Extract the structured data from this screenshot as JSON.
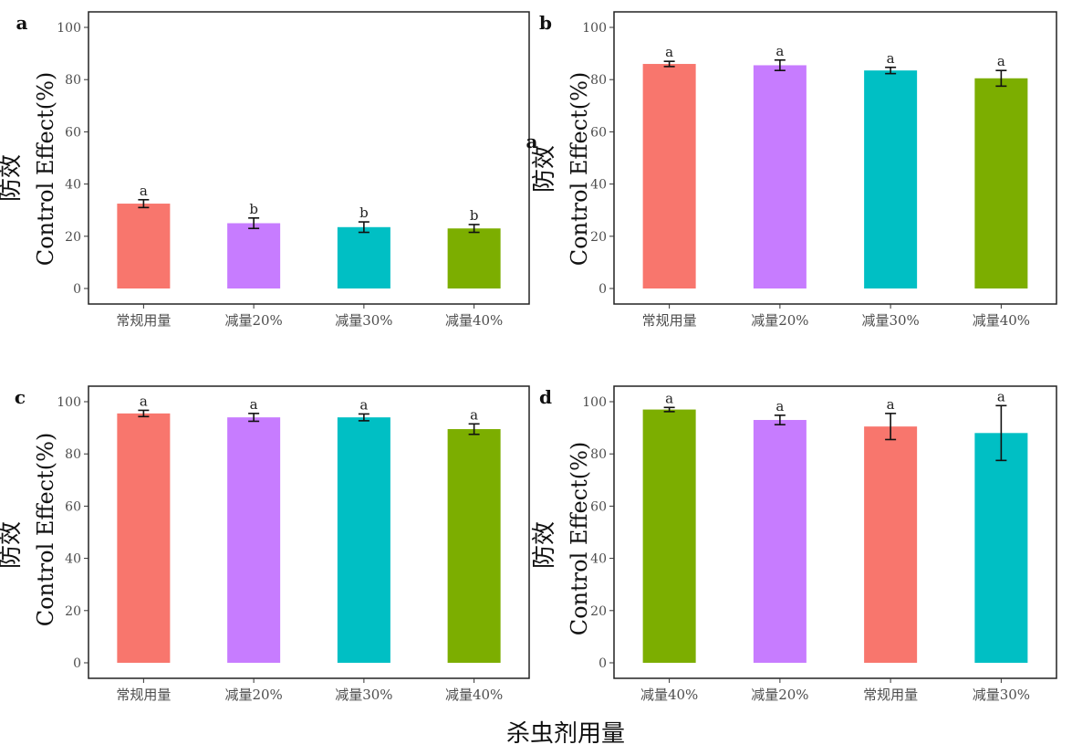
{
  "colors": {
    "常规用量": "#F8766D",
    "减量20%": "#C77CFF",
    "减量30%": "#00BFC4",
    "减量40%": "#7CAE00"
  },
  "chart_data": [
    {
      "type": "bar",
      "panel": "a",
      "ylabel_cn": "防效",
      "ylabel": "Control Effect(%)",
      "ylim": [
        0,
        100
      ],
      "yticks": [
        0,
        20,
        40,
        60,
        80,
        100
      ],
      "categories": [
        "常规用量",
        "减量20%",
        "减量30%",
        "减量40%"
      ],
      "values": [
        32.5,
        25,
        23.5,
        23
      ],
      "errors": [
        1.5,
        2,
        2,
        1.5
      ],
      "significance": [
        "a",
        "b",
        "b",
        "b"
      ]
    },
    {
      "type": "bar",
      "panel": "b",
      "ylabel_cn": "防效",
      "ylabel": "Control Effect(%)",
      "ylim": [
        0,
        100
      ],
      "yticks": [
        0,
        20,
        40,
        60,
        80,
        100
      ],
      "categories": [
        "常规用量",
        "减量20%",
        "减量30%",
        "减量40%"
      ],
      "values": [
        86,
        85.5,
        83.5,
        80.5
      ],
      "errors": [
        1,
        2,
        1.2,
        3
      ],
      "significance": [
        "a",
        "a",
        "a",
        "a"
      ],
      "stray_label": "a"
    },
    {
      "type": "bar",
      "panel": "c",
      "ylabel_cn": "防效",
      "ylabel": "Control Effect(%)",
      "ylim": [
        0,
        100
      ],
      "yticks": [
        0,
        20,
        40,
        60,
        80,
        100
      ],
      "categories": [
        "常规用量",
        "减量20%",
        "减量30%",
        "减量40%"
      ],
      "values": [
        95.5,
        94,
        94,
        89.5
      ],
      "errors": [
        1.2,
        1.5,
        1.3,
        2
      ],
      "significance": [
        "a",
        "a",
        "a",
        "a"
      ]
    },
    {
      "type": "bar",
      "panel": "d",
      "ylabel_cn": "防效",
      "ylabel": "Control Effect(%)",
      "ylim": [
        0,
        100
      ],
      "yticks": [
        0,
        20,
        40,
        60,
        80,
        100
      ],
      "categories": [
        "减量40%",
        "减量20%",
        "常规用量",
        "减量30%"
      ],
      "values": [
        97,
        93,
        90.5,
        88
      ],
      "errors": [
        0.8,
        1.8,
        5,
        10.5
      ],
      "significance": [
        "a",
        "a",
        "a",
        "a"
      ]
    }
  ],
  "global_xlabel": "杀虫剂用量"
}
